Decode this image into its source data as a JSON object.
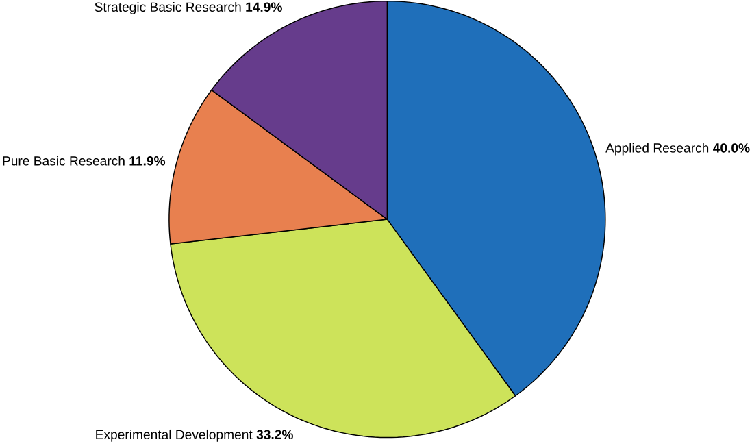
{
  "chart_data": {
    "type": "pie",
    "categories": [
      "Applied Research",
      "Experimental Development",
      "Pure Basic Research",
      "Strategic Basic Research"
    ],
    "values": [
      40.0,
      33.2,
      11.9,
      14.9
    ],
    "colors": [
      "#1f6fba",
      "#cde35a",
      "#e8804f",
      "#663c8c"
    ],
    "value_labels": [
      "40.0%",
      "33.2%",
      "11.9%",
      "14.9%"
    ]
  }
}
